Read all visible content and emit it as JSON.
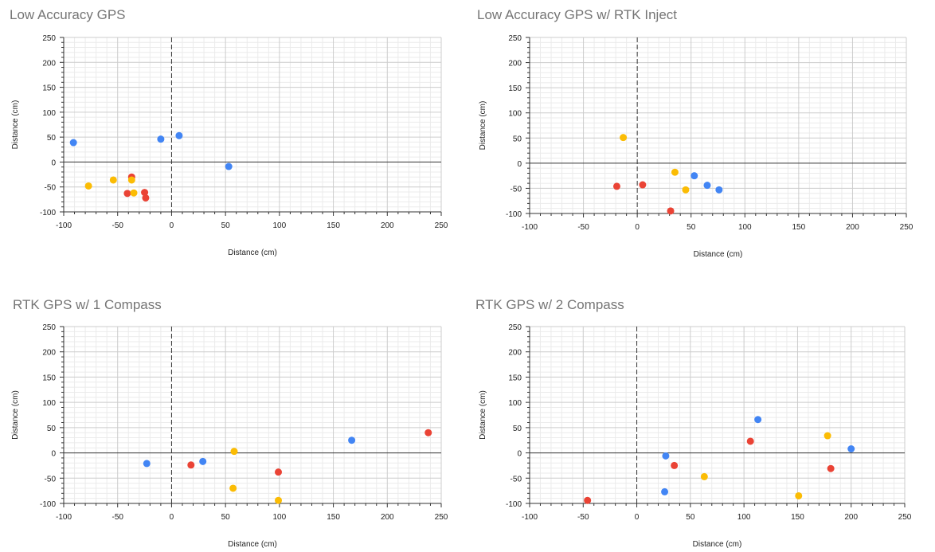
{
  "colors": {
    "blue": "#4285f4",
    "red": "#ea4335",
    "yellow": "#fbbc04",
    "major_grid": "#cccccc",
    "minor_grid": "#ebebeb",
    "zero_line": "#333333",
    "axis": "#333333"
  },
  "chart_data": [
    {
      "type": "scatter",
      "title": "Low Accuracy GPS",
      "xlabel": "Distance (cm)",
      "ylabel": "Distance (cm)",
      "xlim": [
        -100,
        250
      ],
      "ylim": [
        -100,
        250
      ],
      "grid": true,
      "x_ticks": [
        "-100",
        "-50",
        "0",
        "50",
        "100",
        "150",
        "200",
        "250"
      ],
      "y_ticks": [
        "250",
        "200",
        "150",
        "100",
        "50",
        "0",
        "-50",
        "-100"
      ],
      "series": [
        {
          "color": "blue",
          "points": [
            [
              -91,
              39
            ],
            [
              -10,
              46
            ],
            [
              7,
              53
            ],
            [
              53,
              -9
            ]
          ]
        },
        {
          "color": "red",
          "points": [
            [
              -37,
              -30
            ],
            [
              -41,
              -63
            ],
            [
              -25,
              -61
            ],
            [
              -24,
              -72
            ]
          ]
        },
        {
          "color": "yellow",
          "points": [
            [
              -77,
              -48
            ],
            [
              -54,
              -36
            ],
            [
              -37,
              -36
            ],
            [
              -35,
              -62
            ]
          ]
        }
      ]
    },
    {
      "type": "scatter",
      "title": "Low Accuracy GPS w/ RTK Inject",
      "xlabel": "Distance (cm)",
      "ylabel": "Distance (cm)",
      "xlim": [
        -100,
        250
      ],
      "ylim": [
        -100,
        250
      ],
      "grid": true,
      "x_ticks": [
        "-100",
        "-50",
        "0",
        "50",
        "100",
        "150",
        "200",
        "250"
      ],
      "y_ticks": [
        "250",
        "200",
        "150",
        "100",
        "50",
        "0",
        "-50",
        "-100"
      ],
      "series": [
        {
          "color": "blue",
          "points": [
            [
              53,
              -25
            ],
            [
              65,
              -44
            ],
            [
              76,
              -53
            ]
          ]
        },
        {
          "color": "red",
          "points": [
            [
              -19,
              -46
            ],
            [
              5,
              -43
            ],
            [
              31,
              -95
            ]
          ]
        },
        {
          "color": "yellow",
          "points": [
            [
              -13,
              51
            ],
            [
              35,
              -18
            ],
            [
              45,
              -53
            ]
          ]
        }
      ]
    },
    {
      "type": "scatter",
      "title": "RTK GPS w/ 1 Compass",
      "xlabel": "Distance (cm)",
      "ylabel": "Distance (cm)",
      "xlim": [
        -100,
        250
      ],
      "ylim": [
        -100,
        250
      ],
      "grid": true,
      "x_ticks": [
        "-100",
        "-50",
        "0",
        "50",
        "100",
        "150",
        "200",
        "250"
      ],
      "y_ticks": [
        "250",
        "200",
        "150",
        "100",
        "50",
        "0",
        "-50",
        "-100"
      ],
      "series": [
        {
          "color": "blue",
          "points": [
            [
              -23,
              -21
            ],
            [
              29,
              -17
            ],
            [
              167,
              25
            ]
          ]
        },
        {
          "color": "red",
          "points": [
            [
              18,
              -24
            ],
            [
              99,
              -38
            ],
            [
              238,
              40
            ]
          ]
        },
        {
          "color": "yellow",
          "points": [
            [
              58,
              3
            ],
            [
              57,
              -70
            ],
            [
              99,
              -94
            ]
          ]
        }
      ]
    },
    {
      "type": "scatter",
      "title": "RTK GPS w/ 2 Compass",
      "xlabel": "Distance (cm)",
      "ylabel": "Distance (cm)",
      "xlim": [
        -100,
        250
      ],
      "ylim": [
        -100,
        250
      ],
      "grid": true,
      "x_ticks": [
        "-100",
        "-50",
        "0",
        "50",
        "100",
        "150",
        "200",
        "250"
      ],
      "y_ticks": [
        "250",
        "200",
        "150",
        "100",
        "50",
        "0",
        "-50",
        "-100"
      ],
      "series": [
        {
          "color": "blue",
          "points": [
            [
              27,
              -6
            ],
            [
              26,
              -77
            ],
            [
              113,
              66
            ],
            [
              200,
              8
            ]
          ]
        },
        {
          "color": "red",
          "points": [
            [
              -46,
              -94
            ],
            [
              35,
              -25
            ],
            [
              106,
              23
            ],
            [
              181,
              -31
            ]
          ]
        },
        {
          "color": "yellow",
          "points": [
            [
              63,
              -47
            ],
            [
              151,
              -85
            ],
            [
              178,
              34
            ]
          ]
        }
      ]
    }
  ]
}
